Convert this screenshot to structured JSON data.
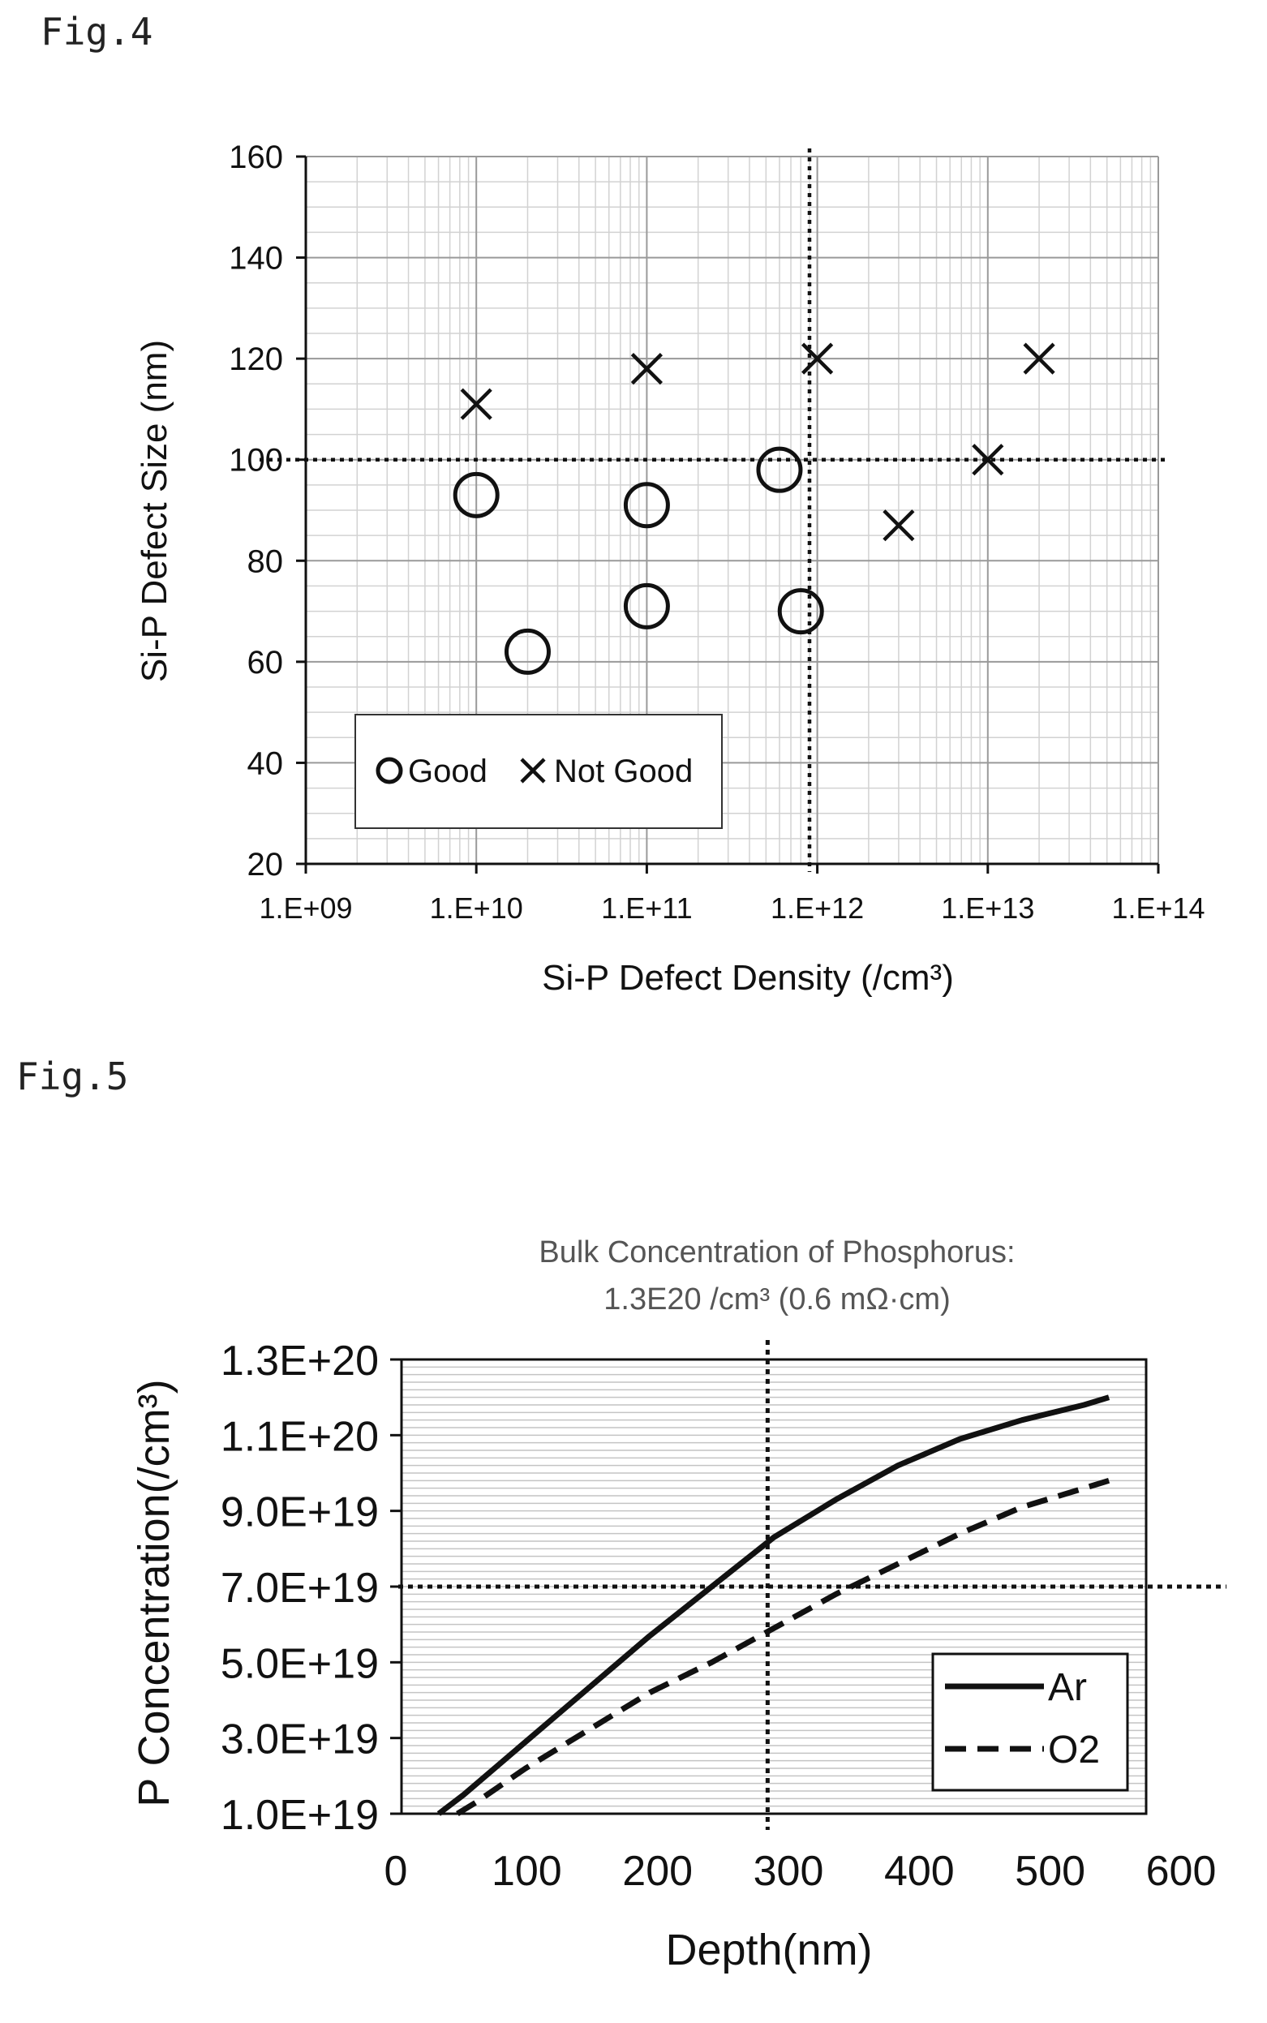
{
  "figures": [
    {
      "label": "Fig.4"
    },
    {
      "label": "Fig.5"
    }
  ],
  "chart_data": [
    {
      "type": "scatter",
      "title": "",
      "xlabel": "Si-P Defect Density (/cm³)",
      "ylabel": "Si-P Defect Size (nm)",
      "xscale": "log",
      "xlim": [
        1000000000.0,
        100000000000000.0
      ],
      "ylim": [
        20,
        160
      ],
      "x_ticks": [
        1000000000.0,
        10000000000.0,
        100000000000.0,
        1000000000000.0,
        10000000000000.0,
        100000000000000.0
      ],
      "x_tick_labels": [
        "1.E+09",
        "1.E+10",
        "1.E+11",
        "1.E+12",
        "1.E+13",
        "1.E+14"
      ],
      "y_ticks": [
        20,
        40,
        60,
        80,
        100,
        120,
        140,
        160
      ],
      "y_tick_labels": [
        "20",
        "40",
        "60",
        "80",
        "100",
        "120",
        "140",
        "160"
      ],
      "grid": true,
      "legend_position": "lower-left",
      "series": [
        {
          "name": "Good",
          "marker": "circle",
          "points": [
            {
              "x": 10000000000.0,
              "y": 93
            },
            {
              "x": 20000000000.0,
              "y": 62
            },
            {
              "x": 100000000000.0,
              "y": 91
            },
            {
              "x": 100000000000.0,
              "y": 71
            },
            {
              "x": 600000000000.0,
              "y": 98
            },
            {
              "x": 800000000000.0,
              "y": 70
            }
          ]
        },
        {
          "name": "Not Good",
          "marker": "x",
          "points": [
            {
              "x": 10000000000.0,
              "y": 111
            },
            {
              "x": 100000000000.0,
              "y": 118
            },
            {
              "x": 1000000000000.0,
              "y": 120
            },
            {
              "x": 3000000000000.0,
              "y": 87
            },
            {
              "x": 10000000000000.0,
              "y": 100
            },
            {
              "x": 20000000000000.0,
              "y": 120
            }
          ]
        }
      ],
      "reference_lines": {
        "x": 900000000000.0,
        "y": 100
      }
    },
    {
      "type": "line",
      "title": "Bulk Concentration of Phosphorus:",
      "subtitle": "1.3E20 /cm³ (0.6 mΩ·cm)",
      "xlabel": "Depth(nm)",
      "ylabel": "P Concentration(/cm³)",
      "xlim": [
        0,
        600
      ],
      "ylim": [
        1e+19,
        1.3e+20
      ],
      "x_ticks": [
        0,
        100,
        200,
        300,
        400,
        500,
        600
      ],
      "x_tick_labels": [
        "0",
        "100",
        "200",
        "300",
        "400",
        "500",
        "600"
      ],
      "y_ticks": [
        1e+19,
        3e+19,
        5e+19,
        7e+19,
        9e+19,
        1.1e+20,
        1.3e+20
      ],
      "y_tick_labels": [
        "1.0E+19",
        "3.0E+19",
        "5.0E+19",
        "7.0E+19",
        "9.0E+19",
        "1.1E+20",
        "1.3E+20"
      ],
      "grid": true,
      "legend_position": "lower-right",
      "series": [
        {
          "name": "Ar",
          "style": "solid",
          "x": [
            30,
            50,
            100,
            150,
            200,
            250,
            300,
            350,
            400,
            450,
            500,
            550,
            570
          ],
          "y": [
            1e+19,
            1.5e+19,
            2.9e+19,
            4.3e+19,
            5.7e+19,
            7e+19,
            8.3e+19,
            9.3e+19,
            1.02e+20,
            1.09e+20,
            1.14e+20,
            1.18e+20,
            1.2e+20
          ]
        },
        {
          "name": "O2",
          "style": "dashed",
          "x": [
            45,
            60,
            100,
            150,
            200,
            250,
            300,
            350,
            400,
            450,
            500,
            550,
            570
          ],
          "y": [
            1e+19,
            1.3e+19,
            2.2e+19,
            3.2e+19,
            4.2e+19,
            5e+19,
            5.9e+19,
            6.8e+19,
            7.6e+19,
            8.4e+19,
            9.1e+19,
            9.6e+19,
            9.8e+19
          ]
        }
      ],
      "reference_lines": {
        "x": 295,
        "y": 7e+19
      }
    }
  ]
}
